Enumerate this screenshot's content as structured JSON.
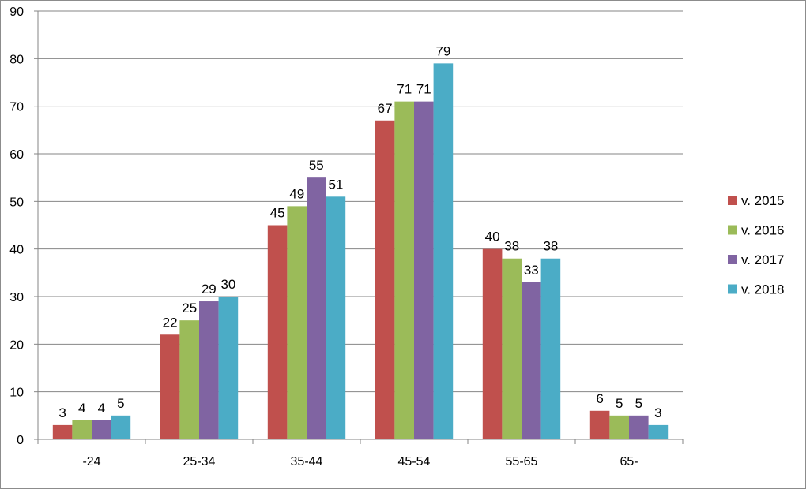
{
  "chart_data": {
    "type": "bar",
    "title": "",
    "xlabel": "",
    "ylabel": "",
    "categories": [
      "-24",
      "25-34",
      "35-44",
      "45-54",
      "55-65",
      "65-"
    ],
    "series": [
      {
        "name": "v. 2015",
        "color": "#C0504D",
        "values": [
          3,
          22,
          45,
          67,
          40,
          6
        ]
      },
      {
        "name": "v. 2016",
        "color": "#9BBB59",
        "values": [
          4,
          25,
          49,
          71,
          38,
          5
        ]
      },
      {
        "name": "v. 2017",
        "color": "#8064A2",
        "values": [
          4,
          29,
          55,
          71,
          33,
          5
        ]
      },
      {
        "name": "v. 2018",
        "color": "#4BACC6",
        "values": [
          5,
          30,
          51,
          79,
          38,
          3
        ]
      }
    ],
    "ylim": [
      0,
      90
    ],
    "yticks": [
      0,
      10,
      20,
      30,
      40,
      50,
      60,
      70,
      80,
      90
    ],
    "grid": true,
    "legend_position": "right",
    "data_labels": true
  }
}
